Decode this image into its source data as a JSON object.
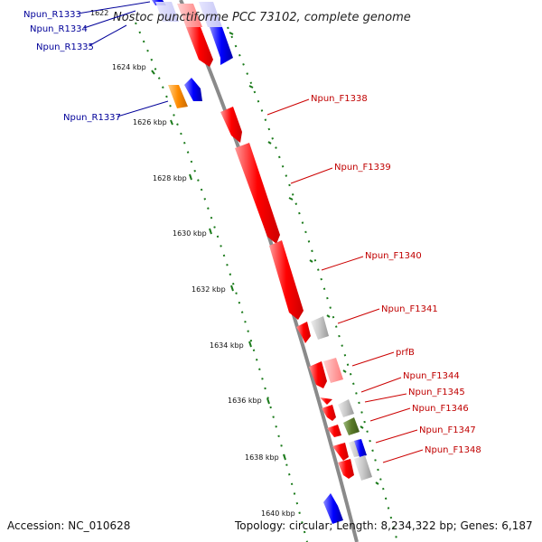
{
  "title": "Nostoc punctiforme PCC 73102, complete genome",
  "footer": {
    "accession": "Accession: NC_010628",
    "summary": "Topology: circular; Length: 8,234,322 bp; Genes: 6,187"
  },
  "colors": {
    "forward_gene": "#ff0000",
    "reverse_gene": "#0000ff",
    "other_gene": "#c0c0c0",
    "orange_gene": "#ff8c00",
    "olive_gene": "#556b2f",
    "backbone": "#808080",
    "tick": "#1a7a1a",
    "label_red": "#cc0000",
    "label_blue": "#000099"
  },
  "kbp_ticks": [
    "1622",
    "1624 kbp",
    "1626 kbp",
    "1628 kbp",
    "1630 kbp",
    "1632 kbp",
    "1634 kbp",
    "1636 kbp",
    "1638 kbp",
    "1640 kbp"
  ],
  "labels_left": [
    "Npun_R1333",
    "Npun_R1334",
    "Npun_R1335",
    "Npun_R1337"
  ],
  "labels_right": [
    "Npun_F1338",
    "Npun_F1339",
    "Npun_F1340",
    "Npun_F1341",
    "prfB",
    "Npun_F1344",
    "Npun_F1345",
    "Npun_F1346",
    "Npun_F1347",
    "Npun_F1348"
  ]
}
